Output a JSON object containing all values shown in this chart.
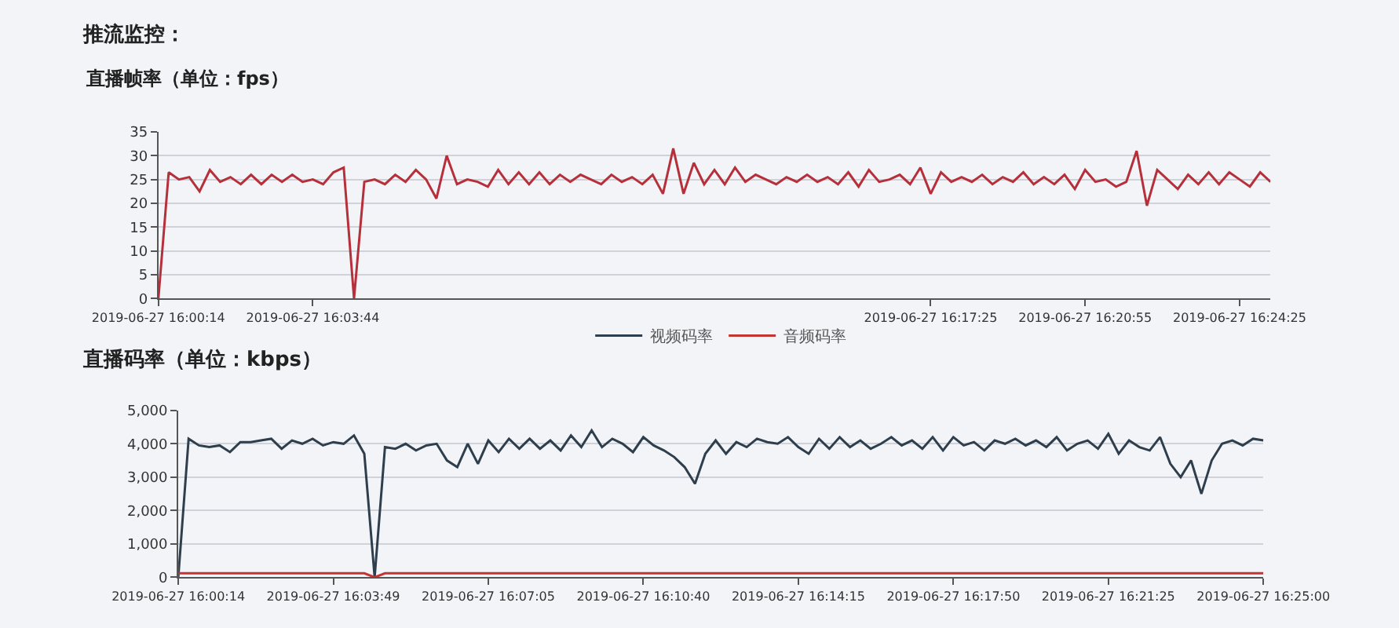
{
  "chart_data": [
    {
      "type": "line",
      "title": "推流监控：",
      "subtitle": "直播帧率（单位：fps）",
      "categories": [
        "2019-06-27 16:00:14",
        null,
        null,
        null,
        null,
        null,
        null,
        null,
        null,
        null,
        null,
        null,
        null,
        null,
        null,
        "2019-06-27 16:03:44",
        null,
        null,
        null,
        null,
        null,
        null,
        null,
        null,
        null,
        null,
        null,
        null,
        null,
        null,
        null,
        null,
        null,
        null,
        null,
        null,
        null,
        null,
        null,
        null,
        null,
        null,
        null,
        null,
        null,
        null,
        null,
        null,
        null,
        null,
        null,
        null,
        null,
        null,
        null,
        null,
        null,
        null,
        null,
        null,
        null,
        null,
        null,
        null,
        null,
        null,
        null,
        null,
        null,
        null,
        null,
        null,
        null,
        null,
        null,
        "2019-06-27 16:17:25",
        null,
        null,
        null,
        null,
        null,
        null,
        null,
        null,
        null,
        null,
        null,
        null,
        null,
        null,
        "2019-06-27 16:20:55",
        null,
        null,
        null,
        null,
        null,
        null,
        null,
        null,
        null,
        null,
        null,
        null,
        null,
        null,
        "2019-06-27 16:24:25",
        null,
        null,
        null
      ],
      "series": [
        {
          "color": "#b5303a",
          "values": [
            0,
            26.5,
            25,
            25.5,
            22.5,
            27,
            24.5,
            25.5,
            24,
            26,
            24,
            26,
            24.5,
            26,
            24.5,
            25,
            24,
            26.5,
            27.5,
            0,
            24.5,
            25,
            24,
            26,
            24.5,
            27,
            25,
            21,
            30,
            24,
            25,
            24.5,
            23.5,
            27,
            24,
            26.5,
            24,
            26.5,
            24,
            26,
            24.5,
            26,
            25,
            24,
            26,
            24.5,
            25.5,
            24,
            26,
            22,
            31.5,
            22,
            28.5,
            24,
            27,
            24,
            27.5,
            24.5,
            26,
            25,
            24,
            25.5,
            24.5,
            26,
            24.5,
            25.5,
            24,
            26.5,
            23.5,
            27,
            24.5,
            25,
            26,
            24,
            27.5,
            22,
            26.5,
            24.5,
            25.5,
            24.5,
            26,
            24,
            25.5,
            24.5,
            26.5,
            24,
            25.5,
            24,
            26,
            23,
            27,
            24.5,
            25,
            23.5,
            24.5,
            31,
            19.5,
            27,
            25,
            23,
            26,
            24,
            26.5,
            24,
            26.5,
            25,
            23.5,
            26.5,
            24.5
          ]
        }
      ],
      "ylim": [
        0,
        35
      ],
      "yticks": [
        0,
        5,
        10,
        15,
        20,
        25,
        30,
        35
      ],
      "grid": "y",
      "legend": false,
      "marker": "none",
      "line_style": "solid"
    },
    {
      "type": "line",
      "title": "直播码率（单位：kbps）",
      "categories": [
        "2019-06-27 16:00:14",
        null,
        null,
        null,
        null,
        null,
        null,
        null,
        null,
        null,
        null,
        null,
        null,
        null,
        null,
        "2019-06-27 16:03:49",
        null,
        null,
        null,
        null,
        null,
        null,
        null,
        null,
        null,
        null,
        null,
        null,
        null,
        null,
        "2019-06-27 16:07:05",
        null,
        null,
        null,
        null,
        null,
        null,
        null,
        null,
        null,
        null,
        null,
        null,
        null,
        null,
        "2019-06-27 16:10:40",
        null,
        null,
        null,
        null,
        null,
        null,
        null,
        null,
        null,
        null,
        null,
        null,
        null,
        null,
        "2019-06-27 16:14:15",
        null,
        null,
        null,
        null,
        null,
        null,
        null,
        null,
        null,
        null,
        null,
        null,
        null,
        null,
        "2019-06-27 16:17:50",
        null,
        null,
        null,
        null,
        null,
        null,
        null,
        null,
        null,
        null,
        null,
        null,
        null,
        null,
        "2019-06-27 16:21:25",
        null,
        null,
        null,
        null,
        null,
        null,
        null,
        null,
        null,
        null,
        null,
        null,
        null,
        null,
        "2019-06-27 16:25:00"
      ],
      "series": [
        {
          "name": "视频码率",
          "color": "#2f3e4c",
          "values": [
            0,
            4150,
            3950,
            3900,
            3950,
            3750,
            4050,
            4050,
            4100,
            4150,
            3850,
            4100,
            4000,
            4150,
            3950,
            4050,
            4000,
            4250,
            3700,
            0,
            3900,
            3850,
            4000,
            3800,
            3950,
            4000,
            3500,
            3300,
            4000,
            3400,
            4100,
            3750,
            4150,
            3850,
            4150,
            3850,
            4100,
            3800,
            4250,
            3900,
            4400,
            3900,
            4150,
            4000,
            3750,
            4200,
            3950,
            3800,
            3600,
            3300,
            2800,
            3700,
            4100,
            3700,
            4050,
            3900,
            4150,
            4050,
            4000,
            4200,
            3900,
            3700,
            4150,
            3850,
            4200,
            3900,
            4100,
            3850,
            4000,
            4200,
            3950,
            4100,
            3850,
            4200,
            3800,
            4200,
            3950,
            4050,
            3800,
            4100,
            4000,
            4150,
            3950,
            4100,
            3900,
            4200,
            3800,
            4000,
            4100,
            3850,
            4300,
            3700,
            4100,
            3900,
            3800,
            4200,
            3400,
            3000,
            3500,
            2500,
            3500,
            4000,
            4100,
            3950,
            4150,
            4100
          ]
        },
        {
          "name": "音频码率",
          "color": "#c23531",
          "values": [
            120,
            120,
            120,
            120,
            120,
            120,
            120,
            120,
            120,
            120,
            120,
            120,
            120,
            120,
            120,
            120,
            120,
            120,
            120,
            0,
            120,
            120,
            120,
            120,
            120,
            120,
            120,
            120,
            120,
            120,
            120,
            120,
            120,
            120,
            120,
            120,
            120,
            120,
            120,
            120,
            120,
            120,
            120,
            120,
            120,
            120,
            120,
            120,
            120,
            120,
            120,
            120,
            120,
            120,
            120,
            120,
            120,
            120,
            120,
            120,
            120,
            120,
            120,
            120,
            120,
            120,
            120,
            120,
            120,
            120,
            120,
            120,
            120,
            120,
            120,
            120,
            120,
            120,
            120,
            120,
            120,
            120,
            120,
            120,
            120,
            120,
            120,
            120,
            120,
            120,
            120,
            120,
            120,
            120,
            120,
            120,
            120,
            120,
            120,
            120,
            120,
            120,
            120,
            120,
            120,
            120
          ]
        }
      ],
      "ylim": [
        0,
        5000
      ],
      "yticks": [
        0,
        {
          "value": 1000,
          "label": "1,000"
        },
        {
          "value": 2000,
          "label": "2,000"
        },
        {
          "value": 3000,
          "label": "3,000"
        },
        {
          "value": 4000,
          "label": "4,000"
        },
        {
          "value": 5000,
          "label": "5,000"
        }
      ],
      "grid": "y",
      "legend": "top",
      "marker": "none",
      "line_style": "solid"
    }
  ]
}
